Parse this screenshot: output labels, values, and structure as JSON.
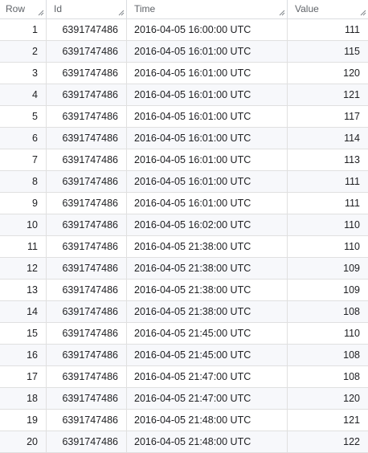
{
  "table": {
    "columns": [
      "Row",
      "Id",
      "Time",
      "Value"
    ],
    "rows": [
      {
        "row": "1",
        "id": "6391747486",
        "time": "2016-04-05 16:00:00 UTC",
        "value": "111"
      },
      {
        "row": "2",
        "id": "6391747486",
        "time": "2016-04-05 16:01:00 UTC",
        "value": "115"
      },
      {
        "row": "3",
        "id": "6391747486",
        "time": "2016-04-05 16:01:00 UTC",
        "value": "120"
      },
      {
        "row": "4",
        "id": "6391747486",
        "time": "2016-04-05 16:01:00 UTC",
        "value": "121"
      },
      {
        "row": "5",
        "id": "6391747486",
        "time": "2016-04-05 16:01:00 UTC",
        "value": "117"
      },
      {
        "row": "6",
        "id": "6391747486",
        "time": "2016-04-05 16:01:00 UTC",
        "value": "114"
      },
      {
        "row": "7",
        "id": "6391747486",
        "time": "2016-04-05 16:01:00 UTC",
        "value": "113"
      },
      {
        "row": "8",
        "id": "6391747486",
        "time": "2016-04-05 16:01:00 UTC",
        "value": "111"
      },
      {
        "row": "9",
        "id": "6391747486",
        "time": "2016-04-05 16:01:00 UTC",
        "value": "111"
      },
      {
        "row": "10",
        "id": "6391747486",
        "time": "2016-04-05 16:02:00 UTC",
        "value": "110"
      },
      {
        "row": "11",
        "id": "6391747486",
        "time": "2016-04-05 21:38:00 UTC",
        "value": "110"
      },
      {
        "row": "12",
        "id": "6391747486",
        "time": "2016-04-05 21:38:00 UTC",
        "value": "109"
      },
      {
        "row": "13",
        "id": "6391747486",
        "time": "2016-04-05 21:38:00 UTC",
        "value": "109"
      },
      {
        "row": "14",
        "id": "6391747486",
        "time": "2016-04-05 21:38:00 UTC",
        "value": "108"
      },
      {
        "row": "15",
        "id": "6391747486",
        "time": "2016-04-05 21:45:00 UTC",
        "value": "110"
      },
      {
        "row": "16",
        "id": "6391747486",
        "time": "2016-04-05 21:45:00 UTC",
        "value": "108"
      },
      {
        "row": "17",
        "id": "6391747486",
        "time": "2016-04-05 21:47:00 UTC",
        "value": "108"
      },
      {
        "row": "18",
        "id": "6391747486",
        "time": "2016-04-05 21:47:00 UTC",
        "value": "120"
      },
      {
        "row": "19",
        "id": "6391747486",
        "time": "2016-04-05 21:48:00 UTC",
        "value": "121"
      },
      {
        "row": "20",
        "id": "6391747486",
        "time": "2016-04-05 21:48:00 UTC",
        "value": "122"
      }
    ]
  },
  "icons": {
    "column_resize": "resize-grip-icon"
  }
}
